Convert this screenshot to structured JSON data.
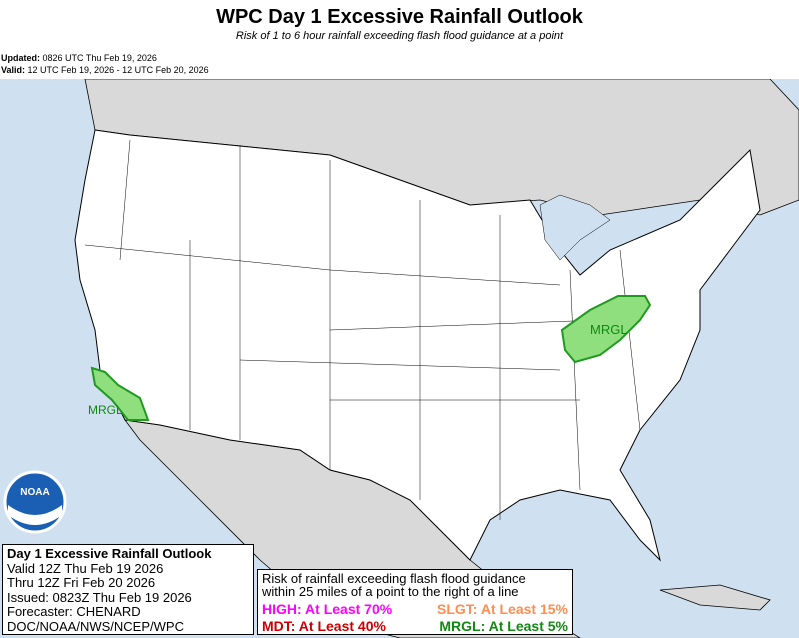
{
  "title": "WPC Day 1 Excessive Rainfall Outlook",
  "subtitle": "Risk of 1 to 6 hour rainfall exceeding flash flood guidance at a point",
  "updated_label": "Updated:",
  "updated": "0826 UTC Thu Feb 19, 2026",
  "valid_label": "Valid:",
  "valid": "12 UTC Feb 19, 2026 - 12 UTC Feb 20, 2026",
  "map": {
    "areas": [
      {
        "category": "MRGL",
        "label": "MRGL",
        "region": "Southern California"
      },
      {
        "category": "MRGL",
        "label": "MRGL",
        "region": "Ohio Valley / Appalachians"
      }
    ],
    "colors": {
      "ocean": "#cfe0f0",
      "land_foreign": "#d9d9d9",
      "us": "#ffffff",
      "mrgl_fill": "#8fdf7f",
      "mrgl_line": "#1f9a1f"
    },
    "logo": "NOAA"
  },
  "infobox": {
    "lines": [
      "Day 1 Excessive Rainfall Outlook",
      "Valid 12Z Thu Feb 19 2026",
      "Thru 12Z Fri Feb 20 2026",
      "Issued: 0823Z Thu Feb 19 2026",
      "Forecaster: CHENARD",
      "DOC/NOAA/NWS/NCEP/WPC"
    ]
  },
  "legend": {
    "desc1": "Risk of rainfall exceeding flash flood guidance",
    "desc2": "within 25 miles of a point to the right of a line",
    "items": [
      {
        "text": "HIGH: At Least 70%",
        "color": "#ff00ff"
      },
      {
        "text": "SLGT: At Least 15%",
        "color": "#ff8c50"
      },
      {
        "text": "MDT: At Least 40%",
        "color": "#cc0000"
      },
      {
        "text": "MRGL: At Least 5%",
        "color": "#118811"
      }
    ]
  }
}
